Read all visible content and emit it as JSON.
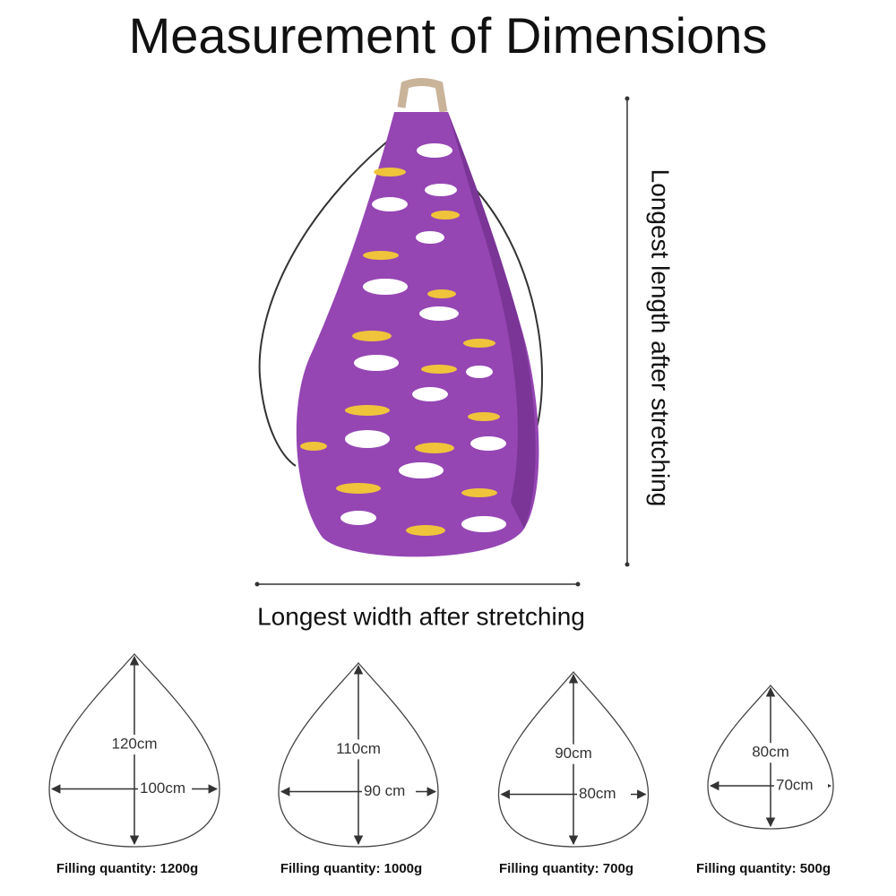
{
  "header": {
    "title": "Measurement of Dimensions"
  },
  "product": {
    "length_label": "Longest length after stretching",
    "width_label": "Longest width after stretching"
  },
  "sizes": [
    {
      "length": "120cm",
      "width": "100cm",
      "filling": "Filling quantity: 1200g"
    },
    {
      "length": "110cm",
      "width": "90 cm",
      "filling": "Filling quantity: 1000g"
    },
    {
      "length": "90cm",
      "width": "80cm",
      "filling": "Filling quantity: 700g"
    },
    {
      "length": "80cm",
      "width": "70cm",
      "filling": "Filling quantity: 500g"
    }
  ]
}
